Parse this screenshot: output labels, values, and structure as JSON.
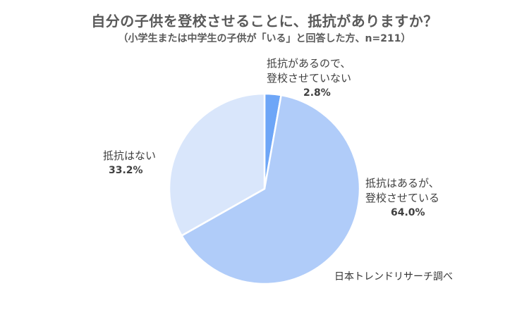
{
  "chart_data": {
    "type": "pie",
    "title": "自分の子供を登校させることに、抵抗がありますか？",
    "subtitle": "（小学生または中学生の子供が「いる」と回答した方、n=211）",
    "slices": [
      {
        "label_lines": [
          "抵抗があるので、",
          "登校させていない"
        ],
        "value": 2.8,
        "value_label": "2.8%",
        "color": "#6ea6f7"
      },
      {
        "label_lines": [
          "抵抗はあるが、",
          "登校させている"
        ],
        "value": 64.0,
        "value_label": "64.0%",
        "color": "#b0ccf9"
      },
      {
        "label_lines": [
          "抵抗はない"
        ],
        "value": 33.2,
        "value_label": "33.2%",
        "color": "#d9e6fb"
      }
    ],
    "legend": "none",
    "source": "日本トレンドリサーチ調べ"
  }
}
